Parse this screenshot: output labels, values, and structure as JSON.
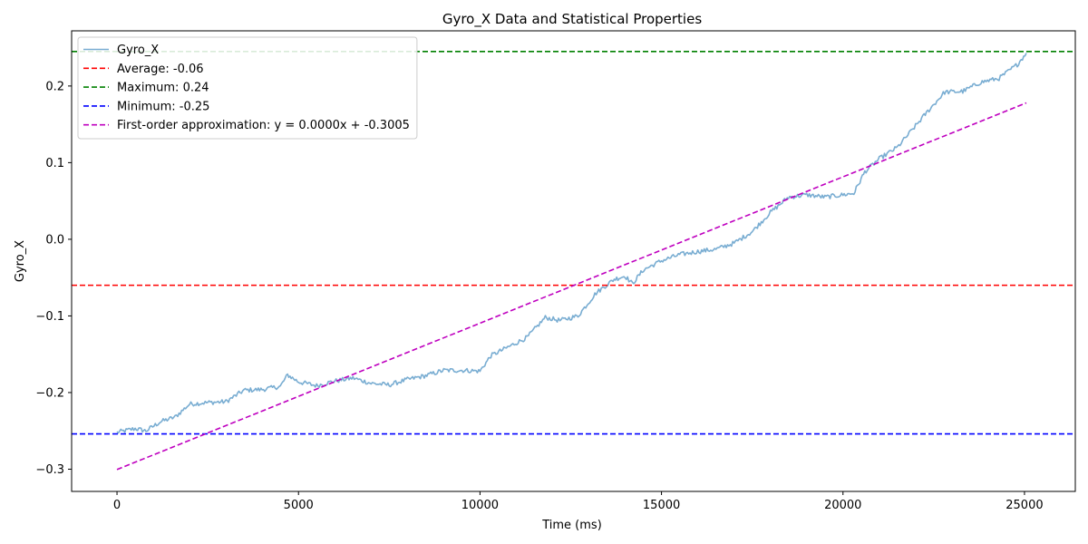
{
  "chart_data": {
    "type": "line",
    "title": "Gyro_X Data and Statistical Properties",
    "xlabel": "Time (ms)",
    "ylabel": "Gyro_X",
    "xlim": [
      -1250,
      26400
    ],
    "ylim": [
      -0.329,
      0.272
    ],
    "x_ticks": [
      0,
      5000,
      10000,
      15000,
      20000,
      25000
    ],
    "x_tick_labels": [
      "0",
      "5000",
      "10000",
      "15000",
      "20000",
      "25000"
    ],
    "y_ticks": [
      -0.3,
      -0.2,
      -0.1,
      0.0,
      0.1,
      0.2
    ],
    "y_tick_labels": [
      "−0.3",
      "−0.2",
      "−0.1",
      "0.0",
      "0.1",
      "0.2"
    ],
    "legend_position": "top-left",
    "series": [
      {
        "name": "Gyro_X",
        "label": "Gyro_X",
        "color": "#1f77b4",
        "style": "solid",
        "x": [
          0,
          500,
          800,
          1200,
          1600,
          2000,
          2500,
          3000,
          3500,
          4000,
          4500,
          4700,
          5000,
          5500,
          6000,
          6500,
          7000,
          7500,
          8000,
          8500,
          9000,
          9500,
          10000,
          10300,
          10800,
          11300,
          11800,
          12200,
          12700,
          13200,
          13700,
          14000,
          14200,
          14500,
          15000,
          15500,
          16000,
          16500,
          17000,
          17500,
          18000,
          18500,
          19000,
          19500,
          20000,
          20300,
          20600,
          21000,
          21500,
          22000,
          22300,
          22800,
          23300,
          23800,
          24300,
          24800,
          25050
        ],
        "y": [
          -0.252,
          -0.247,
          -0.25,
          -0.238,
          -0.232,
          -0.215,
          -0.213,
          -0.212,
          -0.197,
          -0.196,
          -0.192,
          -0.177,
          -0.186,
          -0.191,
          -0.185,
          -0.181,
          -0.188,
          -0.19,
          -0.183,
          -0.178,
          -0.171,
          -0.171,
          -0.172,
          -0.152,
          -0.14,
          -0.128,
          -0.102,
          -0.106,
          -0.1,
          -0.07,
          -0.052,
          -0.048,
          -0.058,
          -0.04,
          -0.028,
          -0.02,
          -0.016,
          -0.013,
          -0.005,
          0.01,
          0.035,
          0.055,
          0.058,
          0.055,
          0.058,
          0.06,
          0.088,
          0.105,
          0.12,
          0.148,
          0.165,
          0.192,
          0.193,
          0.205,
          0.21,
          0.228,
          0.243
        ]
      },
      {
        "name": "Average",
        "label": "Average: -0.06",
        "color": "#ff0000",
        "style": "dashed",
        "hline": -0.06
      },
      {
        "name": "Maximum",
        "label": "Maximum: 0.24",
        "color": "#008000",
        "style": "dashed",
        "hline": 0.245
      },
      {
        "name": "Minimum",
        "label": "Minimum: -0.25",
        "color": "#0000ff",
        "style": "dashed",
        "hline": -0.254
      },
      {
        "name": "First-order approximation",
        "label": "First-order approximation: y = 0.0000x + -0.3005",
        "color": "#bf00bf",
        "style": "dashed",
        "x": [
          0,
          25050
        ],
        "y": [
          -0.3005,
          0.178
        ]
      }
    ]
  }
}
